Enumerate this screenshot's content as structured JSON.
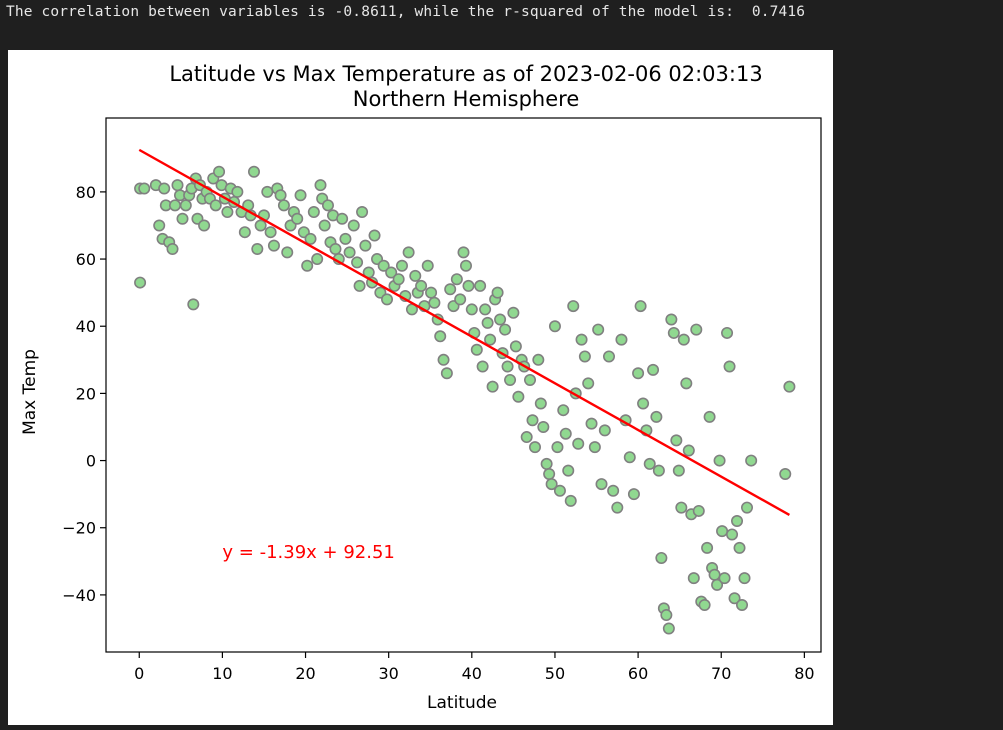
{
  "console": {
    "output": "The correlation between variables is -0.8611, while the r-squared of the model is:  0.7416"
  },
  "chart_data": {
    "type": "scatter",
    "title_line1": "Latitude vs  Max Temperature as of 2023-02-06 02:03:13",
    "title_line2": "Northern Hemisphere",
    "xlabel": "Latitude",
    "ylabel": "Max Temp",
    "xlim": [
      -4,
      82
    ],
    "ylim": [
      -57,
      102
    ],
    "xticks": [
      0,
      10,
      20,
      30,
      40,
      50,
      60,
      70,
      80
    ],
    "yticks": [
      -40,
      -20,
      0,
      20,
      40,
      60,
      80
    ],
    "ytick_labels": [
      "−40",
      "−20",
      "0",
      "20",
      "40",
      "60",
      "80"
    ],
    "grid": false,
    "marker_fill": "#90d890",
    "marker_edge": "#808080",
    "regression": {
      "slope": -1.39,
      "intercept": 92.51,
      "x_range": [
        0,
        78.2
      ],
      "color": "#ff0000",
      "equation_text": "y = -1.39x +  92.51",
      "equation_anchor": [
        10,
        -29
      ]
    },
    "points": [
      [
        0.1,
        81
      ],
      [
        0.6,
        81
      ],
      [
        0.1,
        53
      ],
      [
        2,
        82
      ],
      [
        2.4,
        70
      ],
      [
        2.8,
        66
      ],
      [
        3,
        81
      ],
      [
        3.2,
        76
      ],
      [
        3.6,
        65
      ],
      [
        4,
        63
      ],
      [
        4.3,
        76
      ],
      [
        4.6,
        82
      ],
      [
        4.9,
        79
      ],
      [
        5.2,
        72
      ],
      [
        5.6,
        76
      ],
      [
        6,
        79
      ],
      [
        6.3,
        81
      ],
      [
        6.5,
        46.5
      ],
      [
        6.8,
        84
      ],
      [
        7,
        72
      ],
      [
        7.3,
        82
      ],
      [
        7.6,
        78
      ],
      [
        7.8,
        70
      ],
      [
        8.1,
        80
      ],
      [
        8.5,
        78
      ],
      [
        8.9,
        84
      ],
      [
        9.2,
        76
      ],
      [
        9.6,
        86
      ],
      [
        9.9,
        82
      ],
      [
        10.3,
        78
      ],
      [
        10.6,
        74
      ],
      [
        11,
        81
      ],
      [
        11.4,
        77
      ],
      [
        11.8,
        80
      ],
      [
        12.3,
        74
      ],
      [
        12.7,
        68
      ],
      [
        13.1,
        76
      ],
      [
        13.4,
        73
      ],
      [
        13.8,
        86
      ],
      [
        14.2,
        63
      ],
      [
        14.6,
        70
      ],
      [
        15,
        73
      ],
      [
        15.4,
        80
      ],
      [
        15.8,
        68
      ],
      [
        16.2,
        64
      ],
      [
        16.6,
        81
      ],
      [
        17,
        79
      ],
      [
        17.4,
        76
      ],
      [
        17.8,
        62
      ],
      [
        18.2,
        70
      ],
      [
        18.6,
        74
      ],
      [
        19,
        72
      ],
      [
        19.4,
        79
      ],
      [
        19.8,
        68
      ],
      [
        20.2,
        58
      ],
      [
        20.6,
        66
      ],
      [
        21,
        74
      ],
      [
        21.4,
        60
      ],
      [
        21.8,
        82
      ],
      [
        22,
        78
      ],
      [
        22.3,
        70
      ],
      [
        22.7,
        76
      ],
      [
        23,
        65
      ],
      [
        23.3,
        73
      ],
      [
        23.6,
        63
      ],
      [
        24,
        60
      ],
      [
        24.4,
        72
      ],
      [
        24.8,
        66
      ],
      [
        25.3,
        62
      ],
      [
        25.8,
        70
      ],
      [
        26.2,
        59
      ],
      [
        26.5,
        52
      ],
      [
        26.8,
        74
      ],
      [
        27.2,
        64
      ],
      [
        27.6,
        56
      ],
      [
        28,
        53
      ],
      [
        28.3,
        67
      ],
      [
        28.6,
        60
      ],
      [
        29,
        50
      ],
      [
        29.4,
        58
      ],
      [
        29.8,
        48
      ],
      [
        30.3,
        56
      ],
      [
        30.7,
        52
      ],
      [
        31.2,
        54
      ],
      [
        31.6,
        58
      ],
      [
        32,
        49
      ],
      [
        32.4,
        62
      ],
      [
        32.8,
        45
      ],
      [
        33.2,
        55
      ],
      [
        33.5,
        50
      ],
      [
        33.9,
        52
      ],
      [
        34.3,
        46
      ],
      [
        34.7,
        58
      ],
      [
        35.1,
        50
      ],
      [
        35.5,
        47
      ],
      [
        35.9,
        42
      ],
      [
        36.2,
        37
      ],
      [
        36.6,
        30
      ],
      [
        37,
        26
      ],
      [
        37.4,
        51
      ],
      [
        37.8,
        46
      ],
      [
        38.2,
        54
      ],
      [
        38.6,
        48
      ],
      [
        39,
        62
      ],
      [
        39.3,
        58
      ],
      [
        39.6,
        52
      ],
      [
        40,
        45
      ],
      [
        40.3,
        38
      ],
      [
        40.6,
        33
      ],
      [
        41,
        52
      ],
      [
        41.3,
        28
      ],
      [
        41.6,
        45
      ],
      [
        41.9,
        41
      ],
      [
        42.2,
        36
      ],
      [
        42.5,
        22
      ],
      [
        42.8,
        48
      ],
      [
        43.1,
        50
      ],
      [
        43.4,
        42
      ],
      [
        43.7,
        32
      ],
      [
        44,
        39
      ],
      [
        44.3,
        28
      ],
      [
        44.6,
        24
      ],
      [
        45,
        44
      ],
      [
        45.3,
        34
      ],
      [
        45.6,
        19
      ],
      [
        46,
        30
      ],
      [
        46.3,
        28
      ],
      [
        46.6,
        7
      ],
      [
        47,
        24
      ],
      [
        47.3,
        12
      ],
      [
        47.6,
        4
      ],
      [
        48,
        30
      ],
      [
        48.3,
        17
      ],
      [
        48.6,
        10
      ],
      [
        49,
        -1
      ],
      [
        49.3,
        -4
      ],
      [
        49.6,
        -7
      ],
      [
        50,
        40
      ],
      [
        50.3,
        4
      ],
      [
        50.6,
        -9
      ],
      [
        51,
        15
      ],
      [
        51.3,
        8
      ],
      [
        51.6,
        -3
      ],
      [
        51.9,
        -12
      ],
      [
        52.2,
        46
      ],
      [
        52.5,
        20
      ],
      [
        52.8,
        5
      ],
      [
        53.2,
        36
      ],
      [
        53.6,
        31
      ],
      [
        54,
        23
      ],
      [
        54.4,
        11
      ],
      [
        54.8,
        4
      ],
      [
        55.2,
        39
      ],
      [
        55.6,
        -7
      ],
      [
        56,
        9
      ],
      [
        56.5,
        31
      ],
      [
        57,
        -9
      ],
      [
        57.5,
        -14
      ],
      [
        58,
        36
      ],
      [
        58.5,
        12
      ],
      [
        59,
        1
      ],
      [
        59.5,
        -10
      ],
      [
        60,
        26
      ],
      [
        60.3,
        46
      ],
      [
        60.6,
        17
      ],
      [
        61,
        9
      ],
      [
        61.4,
        -1
      ],
      [
        61.8,
        27
      ],
      [
        62.2,
        13
      ],
      [
        62.5,
        -3
      ],
      [
        62.8,
        -29
      ],
      [
        63.1,
        -44
      ],
      [
        63.4,
        -46
      ],
      [
        63.7,
        -50
      ],
      [
        64,
        42
      ],
      [
        64.3,
        38
      ],
      [
        64.6,
        6
      ],
      [
        64.9,
        -3
      ],
      [
        65.2,
        -14
      ],
      [
        65.5,
        36
      ],
      [
        65.8,
        23
      ],
      [
        66.1,
        3
      ],
      [
        66.4,
        -16
      ],
      [
        66.7,
        -35
      ],
      [
        67,
        39
      ],
      [
        67.3,
        -15
      ],
      [
        67.6,
        -42
      ],
      [
        68,
        -43
      ],
      [
        68.3,
        -26
      ],
      [
        68.6,
        13
      ],
      [
        68.9,
        -32
      ],
      [
        69.2,
        -34
      ],
      [
        69.5,
        -37
      ],
      [
        69.8,
        0
      ],
      [
        70.1,
        -21
      ],
      [
        70.4,
        -35
      ],
      [
        70.7,
        38
      ],
      [
        71,
        28
      ],
      [
        71.3,
        -22
      ],
      [
        71.6,
        -41
      ],
      [
        71.9,
        -18
      ],
      [
        72.2,
        -26
      ],
      [
        72.5,
        -43
      ],
      [
        72.8,
        -35
      ],
      [
        73.1,
        -14
      ],
      [
        73.6,
        0
      ],
      [
        77.7,
        -4
      ],
      [
        78.2,
        22
      ]
    ]
  }
}
